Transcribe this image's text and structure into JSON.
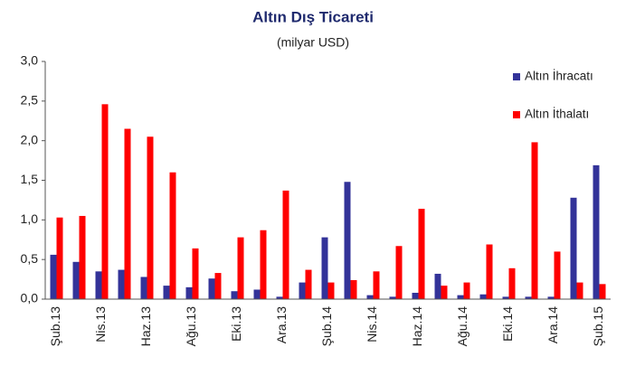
{
  "chart_data": {
    "type": "bar",
    "title": "Altın Dış Ticareti",
    "subtitle": "(milyar USD)",
    "categories": [
      "Şub.13",
      null,
      "Nis.13",
      null,
      "Haz.13",
      null,
      "Ağu.13",
      null,
      "Eki.13",
      null,
      "Ara.13",
      null,
      "Şub.14",
      null,
      "Nis.14",
      null,
      "Haz.14",
      null,
      "Ağu.14",
      null,
      "Eki.14",
      null,
      "Ara.14",
      null,
      "Şub.15"
    ],
    "series": [
      {
        "name": "Altın İhracatı",
        "color": "#333399",
        "values": [
          0.56,
          0.47,
          0.35,
          0.37,
          0.28,
          0.17,
          0.15,
          0.26,
          0.1,
          0.12,
          0.03,
          0.21,
          0.78,
          1.48,
          0.05,
          0.03,
          0.08,
          0.32,
          0.05,
          0.06,
          0.03,
          0.03,
          0.03,
          1.28,
          1.69
        ]
      },
      {
        "name": "Altın İthalatı",
        "color": "#ff0000",
        "values": [
          1.03,
          1.05,
          2.46,
          2.15,
          2.05,
          1.6,
          0.64,
          0.33,
          0.78,
          0.87,
          1.37,
          0.37,
          0.21,
          0.24,
          0.35,
          0.67,
          1.14,
          0.17,
          0.21,
          0.69,
          0.39,
          1.98,
          0.6,
          0.21,
          0.19
        ]
      }
    ],
    "ylim": [
      0,
      3
    ],
    "yticks": [
      {
        "value": 0,
        "label": "0,0"
      },
      {
        "value": 0.5,
        "label": "0,5"
      },
      {
        "value": 1,
        "label": "1,0"
      },
      {
        "value": 1.5,
        "label": "1,5"
      },
      {
        "value": 2,
        "label": "2,0"
      },
      {
        "value": 2.5,
        "label": "2,5"
      },
      {
        "value": 3,
        "label": "3,0"
      }
    ],
    "legend": "top-right",
    "grid": false
  }
}
